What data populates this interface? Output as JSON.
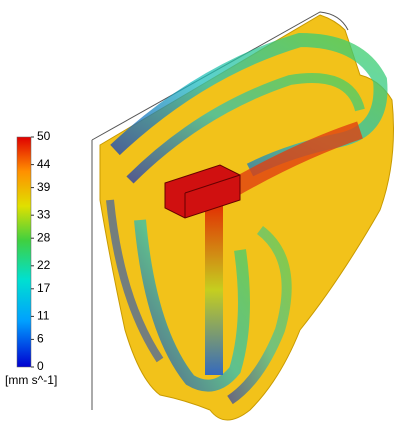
{
  "colorbar": {
    "ticks": [
      50,
      44,
      39,
      33,
      28,
      22,
      17,
      11,
      6,
      0
    ],
    "range": [
      0,
      50
    ],
    "unit": "[mm s^-1]"
  }
}
